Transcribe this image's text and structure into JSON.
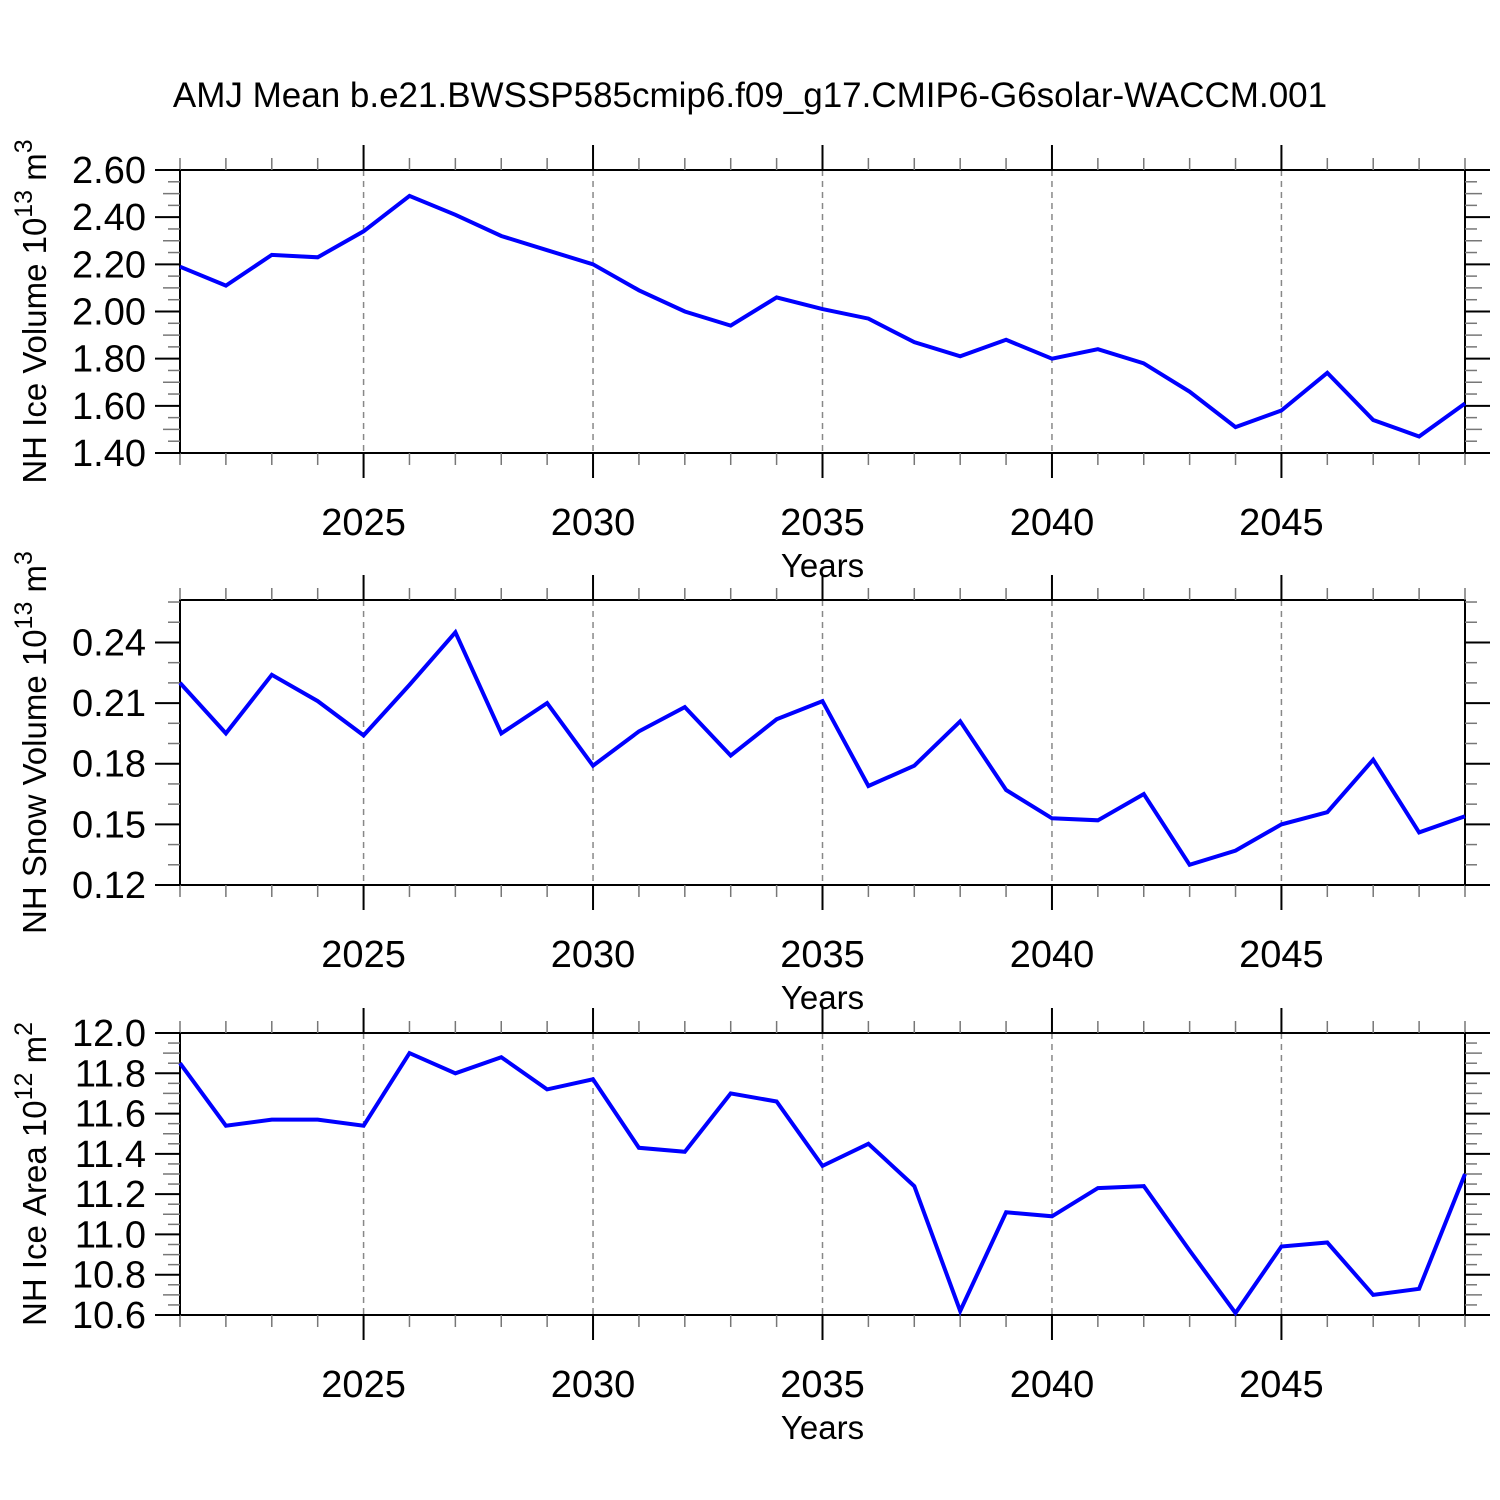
{
  "title": "AMJ Mean b.e21.BWSSP585cmip6.f09_g17.CMIP6-G6solar-WACCM.001",
  "colors": {
    "line": "#0000FF",
    "grid": "#888888",
    "frame": "#000000",
    "minor_tick": "#777777"
  },
  "chart_data": [
    {
      "type": "line",
      "name": "nh-ice-volume",
      "ylabel": {
        "prefix": "NH Ice Volume 10",
        "sup1": "13",
        "mid": " m",
        "sup2": "3"
      },
      "xlabel": "Years",
      "x": [
        2021,
        2022,
        2023,
        2024,
        2025,
        2026,
        2027,
        2028,
        2029,
        2030,
        2031,
        2032,
        2033,
        2034,
        2035,
        2036,
        2037,
        2038,
        2039,
        2040,
        2041,
        2042,
        2043,
        2044,
        2045,
        2046,
        2047,
        2048,
        2049
      ],
      "values": [
        2.19,
        2.11,
        2.24,
        2.23,
        2.34,
        2.49,
        2.41,
        2.32,
        2.26,
        2.2,
        2.09,
        2.0,
        1.94,
        2.06,
        2.01,
        1.97,
        1.87,
        1.81,
        1.88,
        1.8,
        1.84,
        1.78,
        1.66,
        1.51,
        1.58,
        1.74,
        1.54,
        1.47,
        1.61
      ],
      "ylim": [
        1.4,
        2.6
      ],
      "yticks": [
        1.4,
        1.6,
        1.8,
        2.0,
        2.2,
        2.4,
        2.6
      ],
      "ytick_labels": [
        "1.40",
        "1.60",
        "1.80",
        "2.00",
        "2.20",
        "2.40",
        "2.60"
      ],
      "yminor_step": 0.05,
      "ymedium_step": 0.1,
      "xlim": [
        2021,
        2049
      ],
      "xticks": [
        2025,
        2030,
        2035,
        2040,
        2045
      ],
      "xtick_labels": [
        "2025",
        "2030",
        "2035",
        "2040",
        "2045"
      ],
      "xminor_step": 1,
      "grid": "vertical-dashed",
      "legend": "none",
      "line_color": "#0000FF"
    },
    {
      "type": "line",
      "name": "nh-snow-volume",
      "ylabel": {
        "prefix": "NH Snow Volume 10",
        "sup1": "13",
        "mid": " m",
        "sup2": "3"
      },
      "xlabel": "Years",
      "x": [
        2021,
        2022,
        2023,
        2024,
        2025,
        2026,
        2027,
        2028,
        2029,
        2030,
        2031,
        2032,
        2033,
        2034,
        2035,
        2036,
        2037,
        2038,
        2039,
        2040,
        2041,
        2042,
        2043,
        2044,
        2045,
        2046,
        2047,
        2048,
        2049
      ],
      "values": [
        0.22,
        0.195,
        0.224,
        0.211,
        0.194,
        0.219,
        0.245,
        0.195,
        0.21,
        0.179,
        0.196,
        0.208,
        0.184,
        0.202,
        0.211,
        0.169,
        0.179,
        0.201,
        0.167,
        0.153,
        0.152,
        0.165,
        0.13,
        0.137,
        0.15,
        0.156,
        0.182,
        0.146,
        0.154
      ],
      "ylim": [
        0.12,
        0.261
      ],
      "yticks": [
        0.12,
        0.15,
        0.18,
        0.21,
        0.24
      ],
      "ytick_labels": [
        "0.12",
        "0.15",
        "0.18",
        "0.21",
        "0.24"
      ],
      "yminor_step": 0.01,
      "ymedium_step": null,
      "xlim": [
        2021,
        2049
      ],
      "xticks": [
        2025,
        2030,
        2035,
        2040,
        2045
      ],
      "xtick_labels": [
        "2025",
        "2030",
        "2035",
        "2040",
        "2045"
      ],
      "xminor_step": 1,
      "grid": "vertical-dashed",
      "legend": "none",
      "line_color": "#0000FF"
    },
    {
      "type": "line",
      "name": "nh-ice-area",
      "ylabel": {
        "prefix": "NH Ice Area 10",
        "sup1": "12",
        "mid": " m",
        "sup2": "2"
      },
      "xlabel": "Years",
      "x": [
        2021,
        2022,
        2023,
        2024,
        2025,
        2026,
        2027,
        2028,
        2029,
        2030,
        2031,
        2032,
        2033,
        2034,
        2035,
        2036,
        2037,
        2038,
        2039,
        2040,
        2041,
        2042,
        2043,
        2044,
        2045,
        2046,
        2047,
        2048,
        2049
      ],
      "values": [
        11.85,
        11.54,
        11.57,
        11.57,
        11.54,
        11.9,
        11.8,
        11.88,
        11.72,
        11.77,
        11.43,
        11.41,
        11.7,
        11.66,
        11.34,
        11.45,
        11.24,
        10.62,
        11.11,
        11.09,
        11.23,
        11.24,
        10.92,
        10.61,
        10.94,
        10.96,
        10.7,
        10.73,
        11.3
      ],
      "ylim": [
        10.6,
        12.0
      ],
      "yticks": [
        10.6,
        10.8,
        11.0,
        11.2,
        11.4,
        11.6,
        11.8,
        12.0
      ],
      "ytick_labels": [
        "10.6",
        "10.8",
        "11.0",
        "11.2",
        "11.4",
        "11.6",
        "11.8",
        "12.0"
      ],
      "yminor_step": 0.05,
      "ymedium_step": 0.1,
      "xlim": [
        2021,
        2049
      ],
      "xticks": [
        2025,
        2030,
        2035,
        2040,
        2045
      ],
      "xtick_labels": [
        "2025",
        "2030",
        "2035",
        "2040",
        "2045"
      ],
      "xminor_step": 1,
      "grid": "vertical-dashed",
      "legend": "none",
      "line_color": "#0000FF"
    }
  ]
}
